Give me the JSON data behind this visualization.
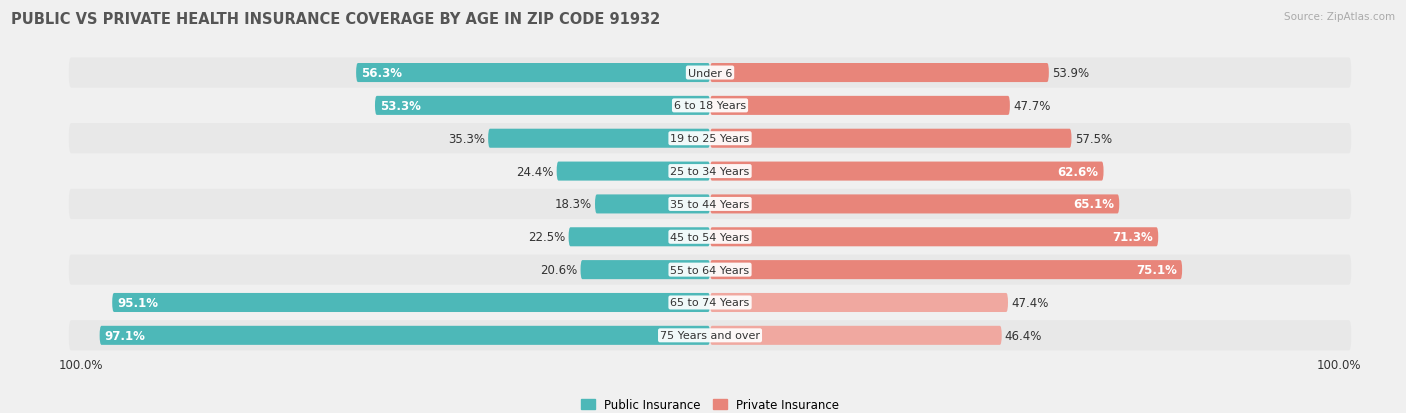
{
  "title": "PUBLIC VS PRIVATE HEALTH INSURANCE COVERAGE BY AGE IN ZIP CODE 91932",
  "source": "Source: ZipAtlas.com",
  "categories": [
    "Under 6",
    "6 to 18 Years",
    "19 to 25 Years",
    "25 to 34 Years",
    "35 to 44 Years",
    "45 to 54 Years",
    "55 to 64 Years",
    "65 to 74 Years",
    "75 Years and over"
  ],
  "public_values": [
    56.3,
    53.3,
    35.3,
    24.4,
    18.3,
    22.5,
    20.6,
    95.1,
    97.1
  ],
  "private_values": [
    53.9,
    47.7,
    57.5,
    62.6,
    65.1,
    71.3,
    75.1,
    47.4,
    46.4
  ],
  "public_color": "#4db8b8",
  "private_colors": [
    "#e8857a",
    "#e8857a",
    "#e8857a",
    "#e8857a",
    "#e8857a",
    "#e8857a",
    "#e8857a",
    "#f0a8a0",
    "#f0a8a0"
  ],
  "public_label": "Public Insurance",
  "private_label": "Private Insurance",
  "bar_height": 0.58,
  "row_bg_colors": [
    "#e8e8e8",
    "#f0f0f0",
    "#e8e8e8",
    "#f0f0f0",
    "#e8e8e8",
    "#f0f0f0",
    "#e8e8e8",
    "#f0f0f0",
    "#e8e8e8"
  ],
  "max_value": 100.0,
  "title_fontsize": 10.5,
  "value_fontsize": 8.5,
  "category_fontsize": 8.0,
  "title_color": "#555555",
  "text_color": "#333333",
  "background_color": "#f0f0f0"
}
